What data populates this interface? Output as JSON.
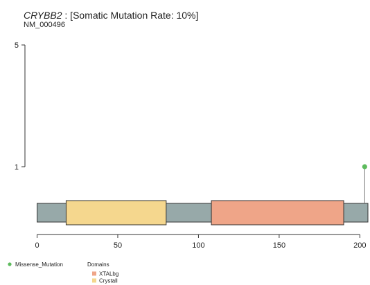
{
  "chart_data": {
    "type": "lollipop",
    "title_gene": "CRYBB2",
    "title_rest": " : [Somatic Mutation Rate: 10%]",
    "subtitle": "NM_000496",
    "protein_length": 205,
    "xlim": [
      0,
      205
    ],
    "ylim": [
      0,
      5
    ],
    "x_ticks": [
      0,
      50,
      100,
      150,
      200
    ],
    "y_ticks": [
      1,
      5
    ],
    "domains": [
      {
        "name": "Crystall",
        "start": 18,
        "end": 80,
        "color": "#F5D78E"
      },
      {
        "name": "XTALbg",
        "start": 108,
        "end": 190,
        "color": "#EFA588"
      }
    ],
    "mutations": [
      {
        "position": 203,
        "count": 1,
        "type": "Missense_Mutation",
        "color": "#5DBB5D"
      }
    ],
    "backbone_color": "#97A9A9",
    "legend": {
      "mutation_types": [
        {
          "label": "Missense_Mutation",
          "color": "#5DBB5D"
        }
      ],
      "domains_title": "Domains",
      "domains": [
        {
          "label": "XTALbg",
          "color": "#EFA588"
        },
        {
          "label": "Crystall",
          "color": "#F5D78E"
        }
      ]
    }
  }
}
